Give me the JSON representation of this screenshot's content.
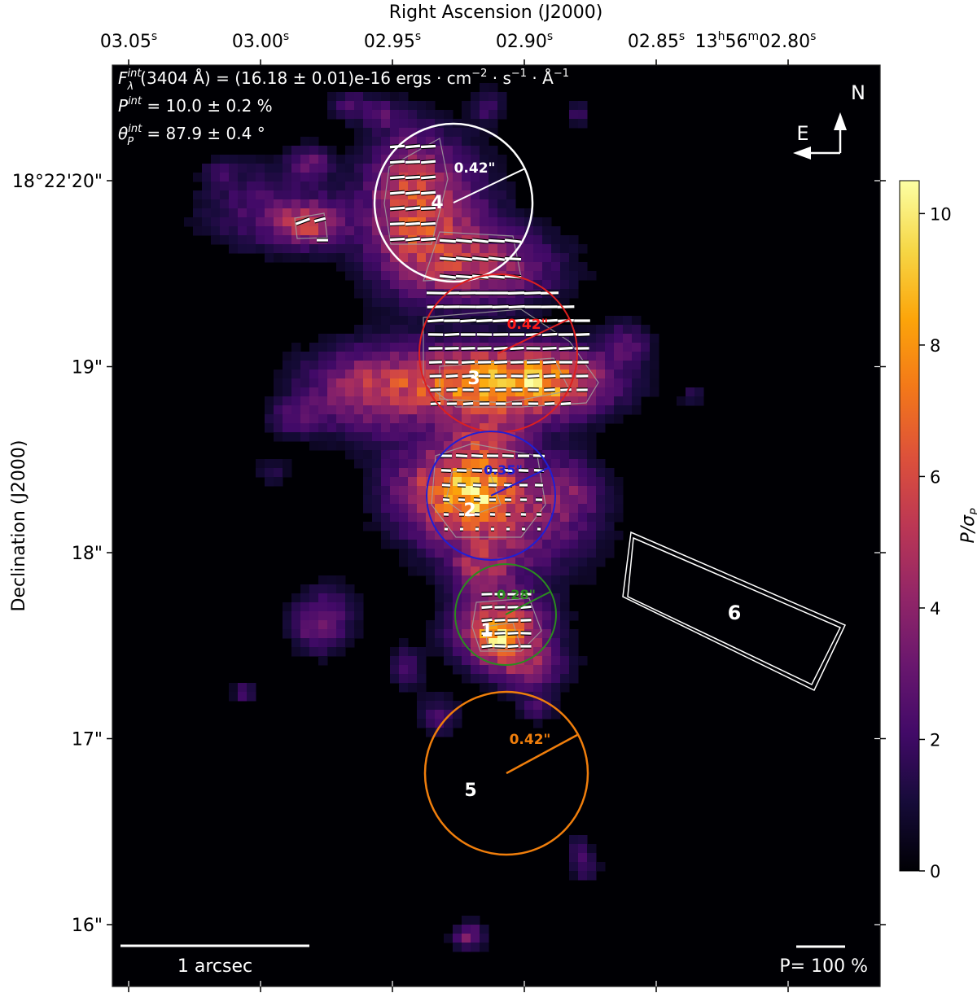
{
  "chart_data": {
    "type": "heatmap",
    "title": "",
    "xlabel": "Right Ascension (J2000)",
    "ylabel": "Declination (J2000)",
    "x_ticks": [
      {
        "ra_s": 3.05,
        "main": "03.05",
        "sup": "s",
        "prefix": "",
        "prefix_sup": ""
      },
      {
        "ra_s": 3.0,
        "main": "03.00",
        "sup": "s",
        "prefix": "",
        "prefix_sup": ""
      },
      {
        "ra_s": 2.95,
        "main": "02.95",
        "sup": "s",
        "prefix": "",
        "prefix_sup": ""
      },
      {
        "ra_s": 2.9,
        "main": "02.90",
        "sup": "s",
        "prefix": "",
        "prefix_sup": ""
      },
      {
        "ra_s": 2.85,
        "main": "02.85",
        "sup": "s",
        "prefix": "",
        "prefix_sup": ""
      },
      {
        "ra_s": 2.8,
        "main": "02.80",
        "sup": "s",
        "prefix": "13",
        "prefix_sup": "h",
        "prefix2": "56",
        "prefix2_sup": "m"
      }
    ],
    "y_ticks": [
      {
        "dec_arcsec": 20,
        "label": "18°22'20\""
      },
      {
        "dec_arcsec": 19,
        "label": "19\""
      },
      {
        "dec_arcsec": 18,
        "label": "18\""
      },
      {
        "dec_arcsec": 17,
        "label": "17\""
      },
      {
        "dec_arcsec": 16,
        "label": "16\""
      }
    ],
    "annotations": {
      "flux_line": {
        "sym": "F",
        "sub": "λ",
        "sup": "int",
        "text": "(3404 Å) = (16.18 ± 0.01)e-16 ergs · cm",
        "exp1": "−2",
        "mid1": " · s",
        "exp2": "−1",
        "mid2": " · Å",
        "exp3": "−1"
      },
      "pol_line": {
        "sym": "P",
        "sup": "int",
        "text": " = 10.0 ± 0.2 %"
      },
      "theta_line": {
        "sym": "θ",
        "sub": "P",
        "sup": "int",
        "text": " = 87.9 ± 0.4 °"
      }
    },
    "compass": {
      "north": "N",
      "east": "E"
    },
    "scalebar": {
      "length_arcsec": 1,
      "label": "1 arcsec"
    },
    "pol_scale": {
      "label": "P= 100 %"
    },
    "colorbar": {
      "label": "P/σ",
      "label_sub": "P",
      "colormap": "inferno",
      "range": [
        0,
        10.5
      ],
      "ticks": [
        0,
        2,
        4,
        6,
        8,
        10
      ]
    },
    "regions": [
      {
        "id": "1",
        "shape": "circle",
        "radius_label": "0.28\"",
        "color": "#2a8c1f",
        "ra_s": 2.8925,
        "dec_arcsec": 17.6
      },
      {
        "id": "2",
        "shape": "circle",
        "radius_label": "0.35\"",
        "color": "#1f1fd6",
        "ra_s": 2.8915,
        "dec_arcsec": 18.3
      },
      {
        "id": "3",
        "shape": "circle",
        "radius_label": "0.42\"",
        "color": "#dd1f1f",
        "ra_s": 2.8895,
        "dec_arcsec": 19.1
      },
      {
        "id": "4",
        "shape": "circle",
        "radius_label": "0.42\"",
        "color": "#ffffff",
        "ra_s": 2.927,
        "dec_arcsec": 19.9
      },
      {
        "id": "5",
        "shape": "circle",
        "radius_label": "0.42\"",
        "color": "#f07e0c",
        "ra_s": 2.8915,
        "dec_arcsec": 16.8
      },
      {
        "id": "6",
        "shape": "rectangle",
        "radius_label": "",
        "color": "#ffffff",
        "ra_s": 2.817,
        "dec_arcsec": 17.7
      }
    ]
  },
  "colors": {
    "background": "#000004",
    "contour": "#a0a0a0",
    "vector": "#ffffff"
  }
}
